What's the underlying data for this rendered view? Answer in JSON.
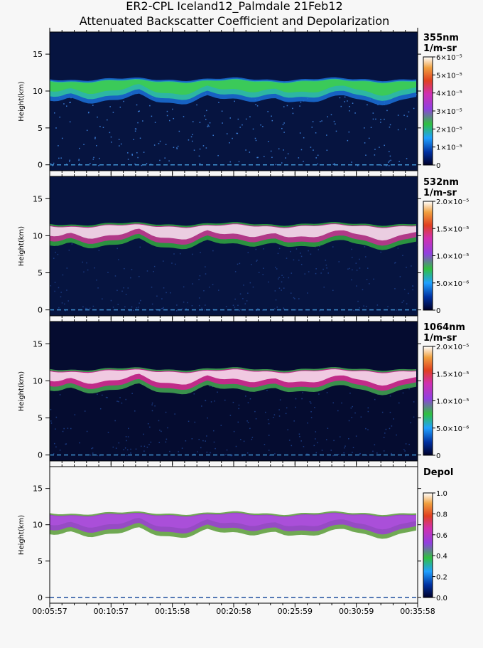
{
  "title": "ER2-CPL Iceland12_Palmdale 21Feb12",
  "subtitle": "Attenuated Backscatter Coefficient and Depolarization",
  "chart_data": [
    {
      "type": "heatmap",
      "ylabel": "Height(km)",
      "ylim": [
        -0.8,
        18
      ],
      "yticks": [
        0,
        5,
        10,
        15
      ],
      "colorbar_label": "355nm",
      "colorbar_unit": "1/m-sr",
      "clim": [
        0,
        6e-05
      ],
      "cticks": [
        0,
        {
          "value": 1e-05,
          "label": "1×10⁻⁵"
        },
        {
          "value": 2e-05,
          "label": "2×10⁻⁵"
        },
        {
          "value": 3e-05,
          "label": "3×10⁻⁵"
        },
        {
          "value": 4e-05,
          "label": "4×10⁻⁵"
        },
        {
          "value": 5e-05,
          "label": "5×10⁻⁵"
        },
        {
          "value": 6e-05,
          "label": "6×10⁻⁵"
        }
      ]
    },
    {
      "type": "heatmap",
      "ylabel": "Height(km)",
      "ylim": [
        -0.8,
        18
      ],
      "yticks": [
        0,
        5,
        10,
        15
      ],
      "colorbar_label": "532nm",
      "colorbar_unit": "1/m-sr",
      "clim": [
        0,
        2e-05
      ],
      "cticks": [
        0,
        {
          "value": 5e-06,
          "label": "5.0×10⁻⁶"
        },
        {
          "value": 1e-05,
          "label": "1.0×10⁻⁵"
        },
        {
          "value": 1.5e-05,
          "label": "1.5×10⁻⁵"
        },
        {
          "value": 2e-05,
          "label": "2.0×10⁻⁵"
        }
      ]
    },
    {
      "type": "heatmap",
      "ylabel": "Height(km)",
      "ylim": [
        -0.8,
        18
      ],
      "yticks": [
        0,
        5,
        10,
        15
      ],
      "colorbar_label": "1064nm",
      "colorbar_unit": "1/m-sr",
      "clim": [
        0,
        2e-05
      ],
      "cticks": [
        0,
        {
          "value": 5e-06,
          "label": "5.0×10⁻⁶"
        },
        {
          "value": 1e-05,
          "label": "1.0×10⁻⁵"
        },
        {
          "value": 1.5e-05,
          "label": "1.5×10⁻⁵"
        },
        {
          "value": 2e-05,
          "label": "2.0×10⁻⁵"
        }
      ]
    },
    {
      "type": "heatmap",
      "ylabel": "Height(km)",
      "ylim": [
        -0.8,
        18
      ],
      "yticks": [
        0,
        5,
        10,
        15
      ],
      "colorbar_label": "Depol",
      "clim": [
        0,
        1
      ],
      "cticks": [
        {
          "value": 0,
          "label": "0.0"
        },
        0.2,
        0.4,
        0.6,
        0.8,
        {
          "value": 1,
          "label": "1.0"
        }
      ],
      "xticks": [
        "00:05:57",
        "00:10:57",
        "00:15:58",
        "00:20:58",
        "00:25:59",
        "00:30:59",
        "00:35:58"
      ]
    }
  ]
}
